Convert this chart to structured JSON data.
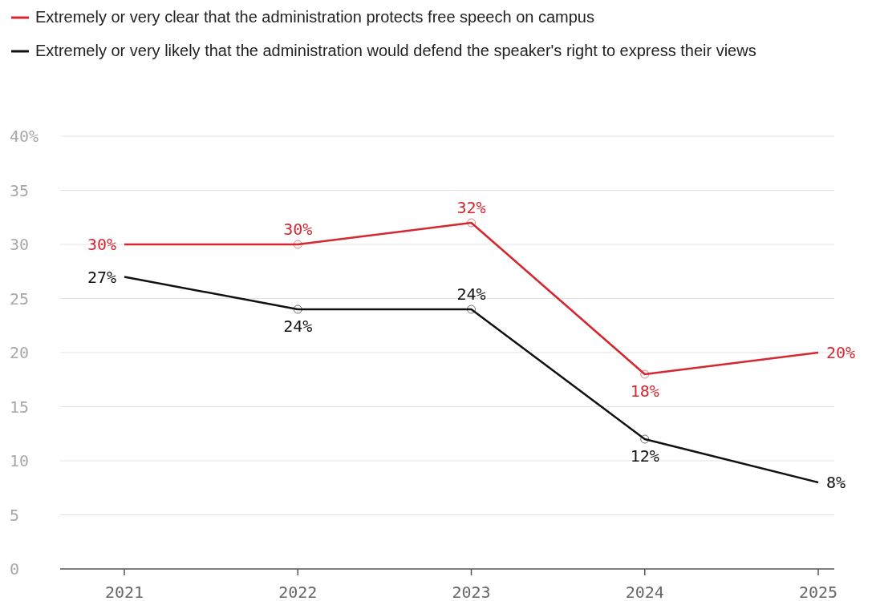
{
  "chart_data": {
    "type": "line",
    "categories": [
      "2021",
      "2022",
      "2023",
      "2024",
      "2025"
    ],
    "series": [
      {
        "name": "Extremely or very clear that the administration protects free speech on campus",
        "color": "#d7262f",
        "values": [
          30,
          30,
          32,
          18,
          20
        ],
        "value_labels": [
          "30%",
          "30%",
          "32%",
          "18%",
          "20%"
        ]
      },
      {
        "name": "Extremely or very likely that the administration would defend the speaker's right to express their views",
        "color": "#111111",
        "values": [
          27,
          24,
          24,
          12,
          8
        ],
        "value_labels": [
          "27%",
          "24%",
          "24%",
          "12%",
          "8%"
        ]
      }
    ],
    "ylim": [
      0,
      40
    ],
    "yticks": [
      0,
      5,
      10,
      15,
      20,
      25,
      30,
      35,
      {
        "value": 40,
        "label": "40%"
      }
    ],
    "grid": "y",
    "legend": "top left",
    "marker": "circle",
    "line_style": "solid"
  }
}
